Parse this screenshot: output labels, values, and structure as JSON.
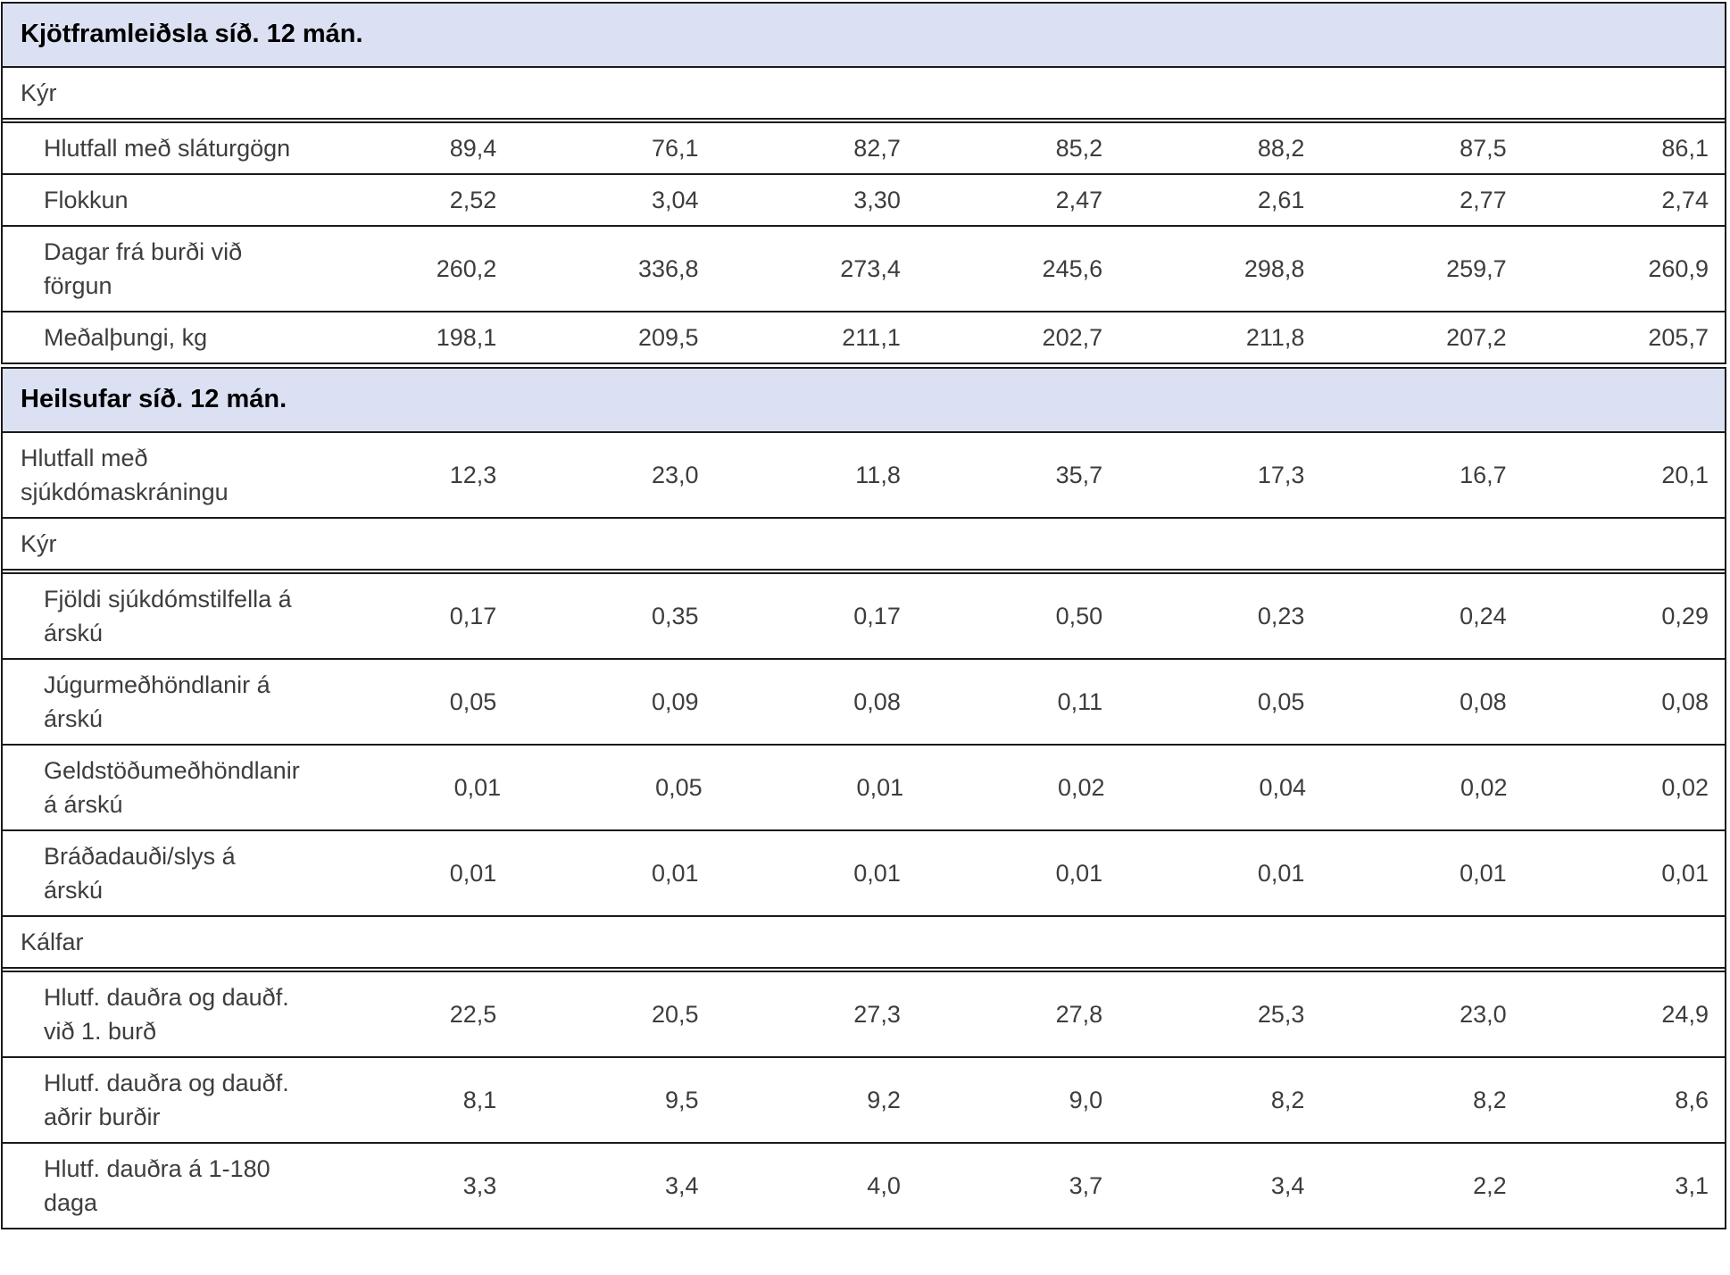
{
  "palette": {
    "section_header_bg": "#dbe1f2",
    "border": "#1a1a1a",
    "text": "#3d3d3d",
    "header_text": "#000000"
  },
  "column_count": 7,
  "sections": [
    {
      "title": "Kjötframleiðsla síð. 12 mán.",
      "rows": [
        {
          "type": "group",
          "label": "Kýr"
        },
        {
          "type": "data",
          "indented": true,
          "label": "Hlutfall með sláturgögn",
          "values": [
            "89,4",
            "76,1",
            "82,7",
            "85,2",
            "88,2",
            "87,5",
            "86,1"
          ]
        },
        {
          "type": "data",
          "indented": true,
          "label": "Flokkun",
          "values": [
            "2,52",
            "3,04",
            "3,30",
            "2,47",
            "2,61",
            "2,77",
            "2,74"
          ]
        },
        {
          "type": "data",
          "indented": true,
          "label": "Dagar frá burði við förgun",
          "values": [
            "260,2",
            "336,8",
            "273,4",
            "245,6",
            "298,8",
            "259,7",
            "260,9"
          ]
        },
        {
          "type": "data",
          "indented": true,
          "label": "Meðalþungi, kg",
          "values": [
            "198,1",
            "209,5",
            "211,1",
            "202,7",
            "211,8",
            "207,2",
            "205,7"
          ]
        }
      ]
    },
    {
      "title": "Heilsufar síð. 12 mán.",
      "rows": [
        {
          "type": "data",
          "indented": false,
          "label": "Hlutfall með sjúkdómaskráningu",
          "values": [
            "12,3",
            "23,0",
            "11,8",
            "35,7",
            "17,3",
            "16,7",
            "20,1"
          ]
        },
        {
          "type": "group",
          "label": "Kýr"
        },
        {
          "type": "data",
          "indented": true,
          "label": "Fjöldi sjúkdómstilfella á árskú",
          "values": [
            "0,17",
            "0,35",
            "0,17",
            "0,50",
            "0,23",
            "0,24",
            "0,29"
          ]
        },
        {
          "type": "data",
          "indented": true,
          "label": "Júgurmeðhöndlanir á árskú",
          "values": [
            "0,05",
            "0,09",
            "0,08",
            "0,11",
            "0,05",
            "0,08",
            "0,08"
          ]
        },
        {
          "type": "data",
          "indented": true,
          "label": "Geldstöðumeðhöndlanir á árskú",
          "values": [
            "0,01",
            "0,05",
            "0,01",
            "0,02",
            "0,04",
            "0,02",
            "0,02"
          ]
        },
        {
          "type": "data",
          "indented": true,
          "label": "Bráðadauði/slys á árskú",
          "values": [
            "0,01",
            "0,01",
            "0,01",
            "0,01",
            "0,01",
            "0,01",
            "0,01"
          ]
        },
        {
          "type": "group",
          "label": "Kálfar"
        },
        {
          "type": "data",
          "indented": true,
          "label": "Hlutf. dauðra og dauðf. við 1. burð",
          "values": [
            "22,5",
            "20,5",
            "27,3",
            "27,8",
            "25,3",
            "23,0",
            "24,9"
          ]
        },
        {
          "type": "data",
          "indented": true,
          "label": "Hlutf. dauðra og dauðf. aðrir burðir",
          "values": [
            "8,1",
            "9,5",
            "9,2",
            "9,0",
            "8,2",
            "8,2",
            "8,6"
          ]
        },
        {
          "type": "data",
          "indented": true,
          "label": "Hlutf. dauðra á 1-180 daga",
          "values": [
            "3,3",
            "3,4",
            "4,0",
            "3,7",
            "3,4",
            "2,2",
            "3,1"
          ]
        }
      ]
    }
  ]
}
